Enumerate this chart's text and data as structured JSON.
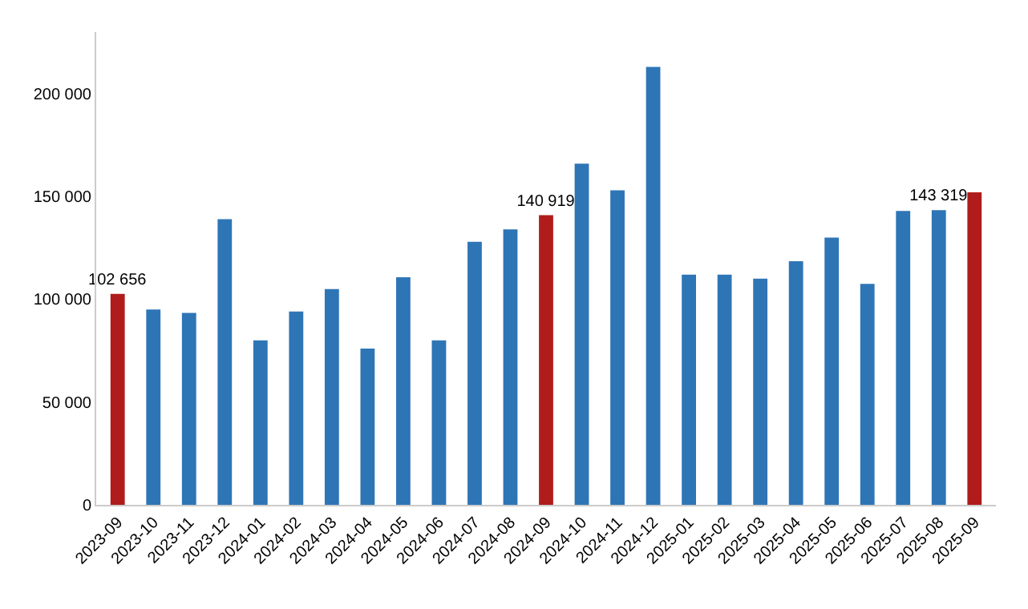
{
  "chart_data": {
    "type": "bar",
    "categories": [
      "2023-09",
      "2023-10",
      "2023-11",
      "2023-12",
      "2024-01",
      "2024-02",
      "2024-03",
      "2024-04",
      "2024-05",
      "2024-06",
      "2024-07",
      "2024-08",
      "2024-09",
      "2024-10",
      "2024-11",
      "2024-12",
      "2025-01",
      "2025-02",
      "2025-03",
      "2025-04",
      "2025-05",
      "2025-06",
      "2025-07",
      "2025-08",
      "2025-09"
    ],
    "values": [
      102656,
      95000,
      93400,
      139000,
      80000,
      94000,
      105000,
      76000,
      110700,
      80000,
      128000,
      134000,
      140919,
      166000,
      153000,
      213000,
      112000,
      112000,
      110000,
      118500,
      130000,
      107500,
      143000,
      143319,
      152000
    ],
    "colors": [
      "#b01c1c",
      "#2e75b6",
      "#2e75b6",
      "#2e75b6",
      "#2e75b6",
      "#2e75b6",
      "#2e75b6",
      "#2e75b6",
      "#2e75b6",
      "#2e75b6",
      "#2e75b6",
      "#2e75b6",
      "#b01c1c",
      "#2e75b6",
      "#2e75b6",
      "#2e75b6",
      "#2e75b6",
      "#2e75b6",
      "#2e75b6",
      "#2e75b6",
      "#2e75b6",
      "#2e75b6",
      "#2e75b6",
      "#2e75b6",
      "#b01c1c"
    ],
    "value_labels": [
      "102 656",
      null,
      null,
      null,
      null,
      null,
      null,
      null,
      null,
      null,
      null,
      null,
      "140 919",
      null,
      null,
      null,
      null,
      null,
      null,
      null,
      null,
      null,
      null,
      "143 319",
      null
    ],
    "ylim": [
      0,
      230000
    ],
    "yticks": [
      0,
      {
        "value": 50000,
        "label": "50 000"
      },
      {
        "value": 100000,
        "label": "100 000"
      },
      {
        "value": 150000,
        "label": "150 000"
      },
      {
        "value": 200000,
        "label": "200 000"
      }
    ]
  }
}
